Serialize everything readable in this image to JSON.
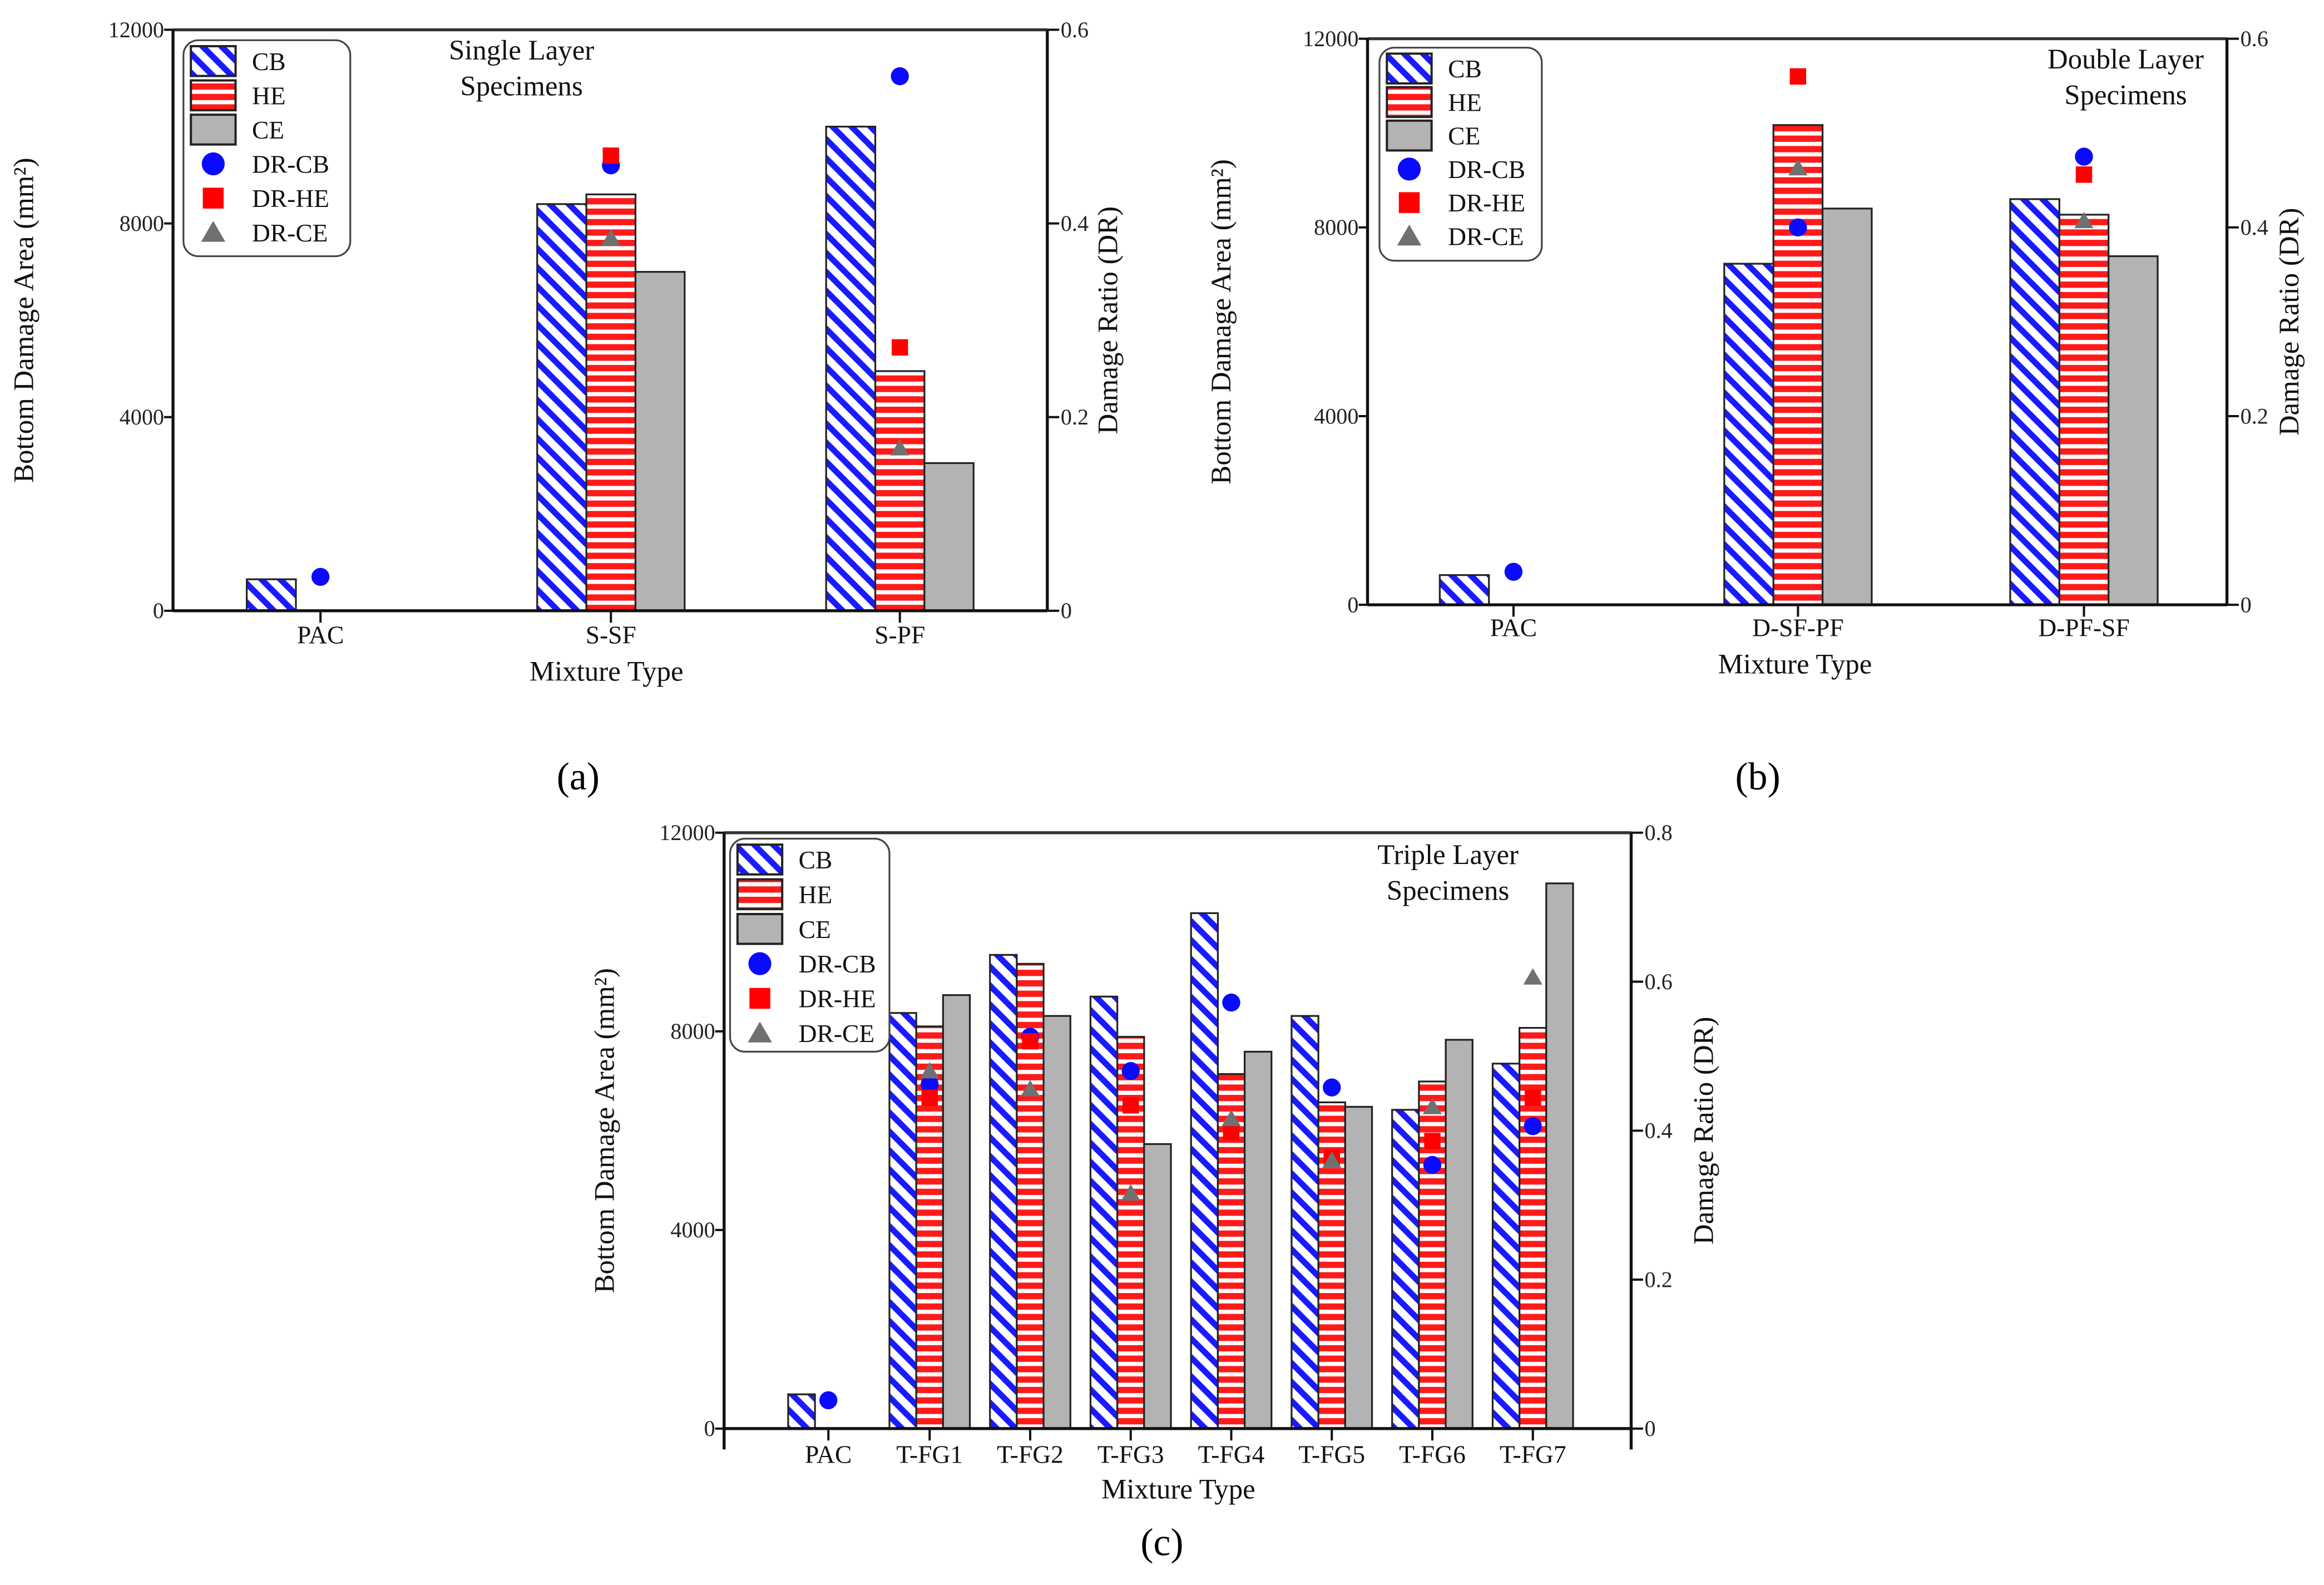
{
  "colors": {
    "cb": "#1a1aff",
    "he": "#ff1a1a",
    "ce": "#b3b3b3",
    "dr_cb": "#0a0aff",
    "dr_he": "#ff0000",
    "dr_ce": "#707070"
  },
  "chart_data": [
    {
      "type": "bar",
      "panel_label": "(a)",
      "title": [
        "Single Layer",
        "Specimens"
      ],
      "xlabel": "Mixture Type",
      "ylabel": "Bottom Damage Area (mm²)",
      "y2label": "Damage Ratio (DR)",
      "ylim": [
        0,
        12000
      ],
      "yticks": [
        "0",
        "4000",
        "8000",
        "12000"
      ],
      "y2lim": [
        0,
        0.6
      ],
      "y2ticks": [
        "0",
        "0.2",
        "0.4",
        "0.6"
      ],
      "legend": [
        "CB",
        "HE",
        "CE",
        "DR-CB",
        "DR-HE",
        "DR-CE"
      ],
      "legend_position": "top-left",
      "categories": [
        "PAC",
        "S-SF",
        "S-PF"
      ],
      "series": [
        {
          "name": "CB",
          "axis": "left",
          "values": [
            650,
            8400,
            10000
          ]
        },
        {
          "name": "HE",
          "axis": "left",
          "values": [
            null,
            8600,
            4950
          ]
        },
        {
          "name": "CE",
          "axis": "left",
          "values": [
            null,
            7000,
            3050
          ]
        },
        {
          "name": "DR-CB",
          "axis": "right",
          "values": [
            0.035,
            0.46,
            0.552
          ]
        },
        {
          "name": "DR-HE",
          "axis": "right",
          "values": [
            null,
            0.47,
            0.272
          ]
        },
        {
          "name": "DR-CE",
          "axis": "right",
          "values": [
            null,
            0.385,
            0.168
          ]
        }
      ]
    },
    {
      "type": "bar",
      "panel_label": "(b)",
      "title": [
        "Double Layer",
        "Specimens"
      ],
      "xlabel": "Mixture Type",
      "ylabel": "Bottom Damage Area (mm²)",
      "y2label": "Damage Ratio (DR)",
      "ylim": [
        0,
        12000
      ],
      "yticks": [
        "0",
        "4000",
        "8000",
        "12000"
      ],
      "y2lim": [
        0,
        0.6
      ],
      "y2ticks": [
        "0",
        "0.2",
        "0.4",
        "0.6"
      ],
      "legend": [
        "CB",
        "HE",
        "CE",
        "DR-CB",
        "DR-HE",
        "DR-CE"
      ],
      "legend_position": "top-left",
      "categories": [
        "PAC",
        "D-SF-PF",
        "D-PF-SF"
      ],
      "series": [
        {
          "name": "CB",
          "axis": "left",
          "values": [
            630,
            7230,
            8600
          ]
        },
        {
          "name": "HE",
          "axis": "left",
          "values": [
            null,
            10170,
            8270
          ]
        },
        {
          "name": "CE",
          "axis": "left",
          "values": [
            null,
            8400,
            7390
          ]
        },
        {
          "name": "DR-CB",
          "axis": "right",
          "values": [
            0.035,
            0.4,
            0.475
          ]
        },
        {
          "name": "DR-HE",
          "axis": "right",
          "values": [
            null,
            0.56,
            0.456
          ]
        },
        {
          "name": "DR-CE",
          "axis": "right",
          "values": [
            null,
            0.463,
            0.407
          ]
        }
      ]
    },
    {
      "type": "bar",
      "panel_label": "(c)",
      "title": [
        "Triple Layer",
        "Specimens"
      ],
      "xlabel": "Mixture Type",
      "ylabel": "Bottom Damage Area (mm²)",
      "y2label": "Damage Ratio (DR)",
      "ylim": [
        0,
        12000
      ],
      "yticks": [
        "0",
        "4000",
        "8000",
        "12000"
      ],
      "y2lim": [
        0,
        0.8
      ],
      "y2ticks": [
        "0",
        "0.2",
        "0.4",
        "0.6",
        "0.8"
      ],
      "legend": [
        "CB",
        "HE",
        "CE",
        "DR-CB",
        "DR-HE",
        "DR-CE"
      ],
      "legend_position": "top-left",
      "categories": [
        "PAC",
        "T-FG1",
        "T-FG2",
        "T-FG3",
        "T-FG4",
        "T-FG5",
        "T-FG6",
        "T-FG7"
      ],
      "series": [
        {
          "name": "CB",
          "axis": "left",
          "values": [
            690,
            8370,
            9540,
            8700,
            10380,
            8310,
            6420,
            7350
          ]
        },
        {
          "name": "HE",
          "axis": "left",
          "values": [
            null,
            8100,
            9360,
            7890,
            7140,
            6570,
            6990,
            8070
          ]
        },
        {
          "name": "CE",
          "axis": "left",
          "values": [
            null,
            8730,
            8310,
            5730,
            7590,
            6480,
            7830,
            10980
          ]
        },
        {
          "name": "DR-CB",
          "axis": "right",
          "values": [
            0.038,
            0.462,
            0.526,
            0.48,
            0.572,
            0.458,
            0.354,
            0.406
          ]
        },
        {
          "name": "DR-HE",
          "axis": "right",
          "values": [
            null,
            0.444,
            0.52,
            0.434,
            0.398,
            0.364,
            0.386,
            0.444
          ]
        },
        {
          "name": "DR-CE",
          "axis": "right",
          "values": [
            null,
            0.48,
            0.456,
            0.316,
            0.416,
            0.36,
            0.432,
            0.606
          ]
        }
      ]
    }
  ]
}
